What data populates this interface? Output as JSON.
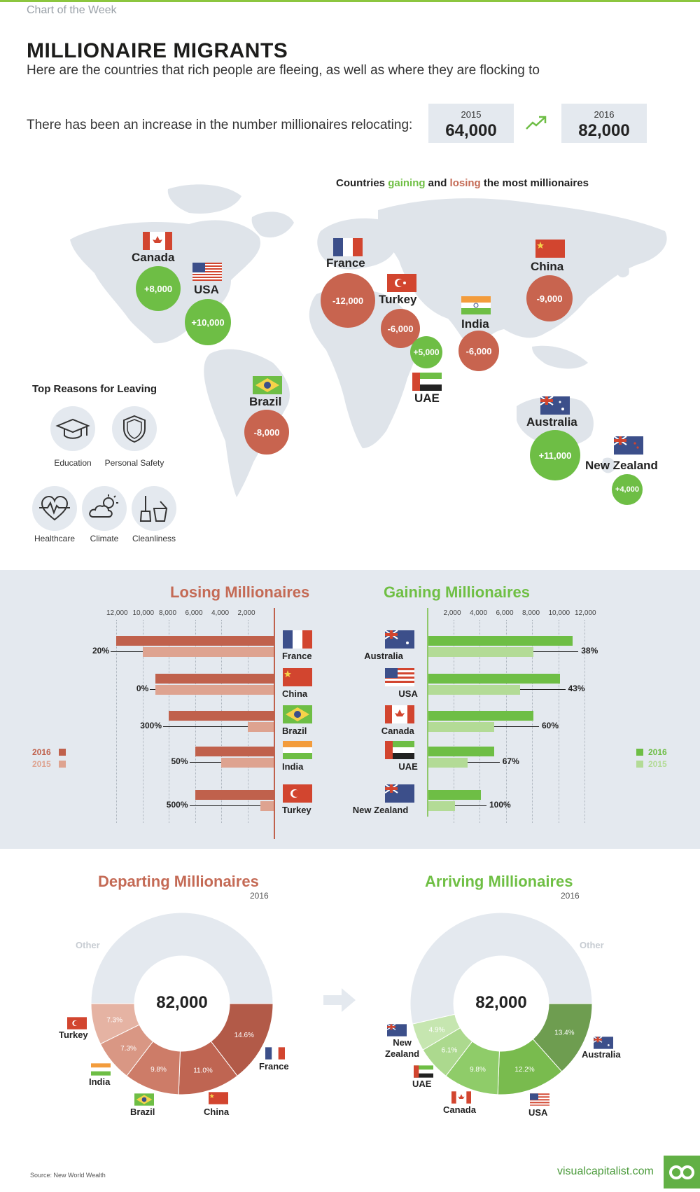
{
  "header": {
    "kicker": "Chart of the Week",
    "title": "MILLIONAIRE MIGRANTS",
    "subtitle": "Here are the countries that rich people are fleeing, as well as where they are flocking to",
    "increase_text": "There has been an increase in the number millionaires relocating:",
    "year_a": "2015",
    "value_a": "64,000",
    "year_b": "2016",
    "value_b": "82,000"
  },
  "map": {
    "legend_prefix": "Countries ",
    "legend_gaining": "gaining",
    "legend_mid": " and ",
    "legend_losing": "losing",
    "legend_suffix": " the most millionaires",
    "countries": [
      {
        "name": "Canada",
        "value": "+8,000",
        "kind": "gain",
        "flag": "canada"
      },
      {
        "name": "USA",
        "value": "+10,000",
        "kind": "gain",
        "flag": "usa"
      },
      {
        "name": "France",
        "value": "-12,000",
        "kind": "loss",
        "flag": "france"
      },
      {
        "name": "Turkey",
        "value": "-6,000",
        "kind": "loss",
        "flag": "turkey"
      },
      {
        "name": "UAE",
        "value": "+5,000",
        "kind": "gain",
        "flag": "uae"
      },
      {
        "name": "India",
        "value": "-6,000",
        "kind": "loss",
        "flag": "india"
      },
      {
        "name": "China",
        "value": "-9,000",
        "kind": "loss",
        "flag": "china"
      },
      {
        "name": "Brazil",
        "value": "-8,000",
        "kind": "loss",
        "flag": "brazil"
      },
      {
        "name": "Australia",
        "value": "+11,000",
        "kind": "gain",
        "flag": "australia"
      },
      {
        "name": "New Zealand",
        "value": "+4,000",
        "kind": "gain",
        "flag": "nz"
      }
    ]
  },
  "reasons": {
    "title": "Top Reasons for Leaving",
    "items": [
      {
        "label": "Education",
        "icon": "graduation-cap-icon"
      },
      {
        "label": "Personal Safety",
        "icon": "shield-icon"
      },
      {
        "label": "Healthcare",
        "icon": "heartbeat-icon"
      },
      {
        "label": "Climate",
        "icon": "sun-cloud-icon"
      },
      {
        "label": "Cleanliness",
        "icon": "cleaning-icon"
      }
    ]
  },
  "chart_data": [
    {
      "type": "bar",
      "title": "Losing Millionaires",
      "orientation": "horizontal",
      "categories": [
        "France",
        "China",
        "Brazil",
        "India",
        "Turkey"
      ],
      "series": [
        {
          "name": "2016",
          "values": [
            12000,
            9000,
            8000,
            6000,
            6000
          ],
          "color": "#c0614c"
        },
        {
          "name": "2015",
          "values": [
            10000,
            9000,
            2000,
            4000,
            1000
          ],
          "color": "#dea390"
        }
      ],
      "change_labels": [
        "20%",
        "0%",
        "300%",
        "50%",
        "500%"
      ],
      "xticks": [
        "12,000",
        "10,000",
        "8,000",
        "6,000",
        "4,000",
        "2,000"
      ],
      "xlim": [
        0,
        12000
      ],
      "legend": "left"
    },
    {
      "type": "bar",
      "title": "Gaining Millionaires",
      "orientation": "horizontal",
      "categories": [
        "Australia",
        "USA",
        "Canada",
        "UAE",
        "New Zealand"
      ],
      "series": [
        {
          "name": "2016",
          "values": [
            11000,
            10000,
            8000,
            5000,
            4000
          ],
          "color": "#6ebe45"
        },
        {
          "name": "2015",
          "values": [
            8000,
            7000,
            5000,
            3000,
            2000
          ],
          "color": "#b3db96"
        }
      ],
      "change_labels": [
        "38%",
        "43%",
        "60%",
        "67%",
        "100%"
      ],
      "xticks": [
        "2,000",
        "4,000",
        "6,000",
        "8,000",
        "10,000",
        "12,000"
      ],
      "xlim": [
        0,
        12000
      ],
      "legend": "right"
    },
    {
      "type": "pie",
      "title": "Departing Millionaires",
      "subtitle": "2016",
      "total": "82,000",
      "slices": [
        {
          "label": "France",
          "value": 14.6,
          "color": "#b25a48"
        },
        {
          "label": "China",
          "value": 11.0,
          "color": "#bf6552"
        },
        {
          "label": "Brazil",
          "value": 9.8,
          "color": "#cd7c68"
        },
        {
          "label": "India",
          "value": 7.3,
          "color": "#d99784"
        },
        {
          "label": "Turkey",
          "value": 7.3,
          "color": "#e5b3a3"
        },
        {
          "label": "Other",
          "value": 50.0,
          "color": "#e4e9ef"
        }
      ]
    },
    {
      "type": "pie",
      "title": "Arriving Millionaires",
      "subtitle": "2016",
      "total": "82,000",
      "slices": [
        {
          "label": "Australia",
          "value": 13.4,
          "color": "#6e9d50"
        },
        {
          "label": "USA",
          "value": 12.2,
          "color": "#79bb4e"
        },
        {
          "label": "Canada",
          "value": 9.8,
          "color": "#8fcc69"
        },
        {
          "label": "UAE",
          "value": 6.1,
          "color": "#acd98e"
        },
        {
          "label": "New Zealand",
          "value": 4.9,
          "color": "#c6e6b0"
        },
        {
          "label": "Other",
          "value": 53.6,
          "color": "#e4e9ef"
        }
      ]
    }
  ],
  "donut_labels": {
    "other": "Other",
    "new_zealand_l1": "New",
    "new_zealand_l2": "Zealand"
  },
  "footer": {
    "source": "Source: New World Wealth",
    "brand": "visualcapitalist.com"
  }
}
